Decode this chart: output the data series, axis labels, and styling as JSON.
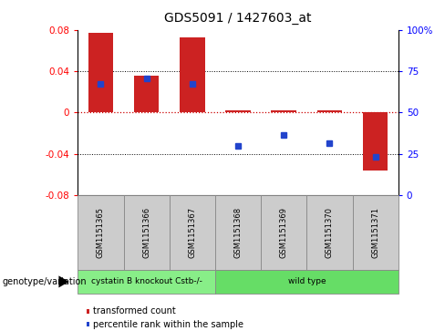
{
  "title": "GDS5091 / 1427603_at",
  "samples": [
    "GSM1151365",
    "GSM1151366",
    "GSM1151367",
    "GSM1151368",
    "GSM1151369",
    "GSM1151370",
    "GSM1151371"
  ],
  "bar_values": [
    0.077,
    0.036,
    0.073,
    0.002,
    0.002,
    0.002,
    -0.056
  ],
  "dot_values": [
    0.028,
    0.033,
    0.028,
    -0.032,
    -0.022,
    -0.03,
    -0.043
  ],
  "ylim": [
    -0.08,
    0.08
  ],
  "yticks_left": [
    -0.08,
    -0.04,
    0,
    0.04,
    0.08
  ],
  "yticks_right": [
    0,
    25,
    50,
    75,
    100
  ],
  "bar_color": "#cc2222",
  "dot_color": "#2244cc",
  "zero_line_color": "#cc0000",
  "groups": [
    {
      "label": "cystatin B knockout Cstb-/-",
      "n": 3,
      "color": "#88ee88"
    },
    {
      "label": "wild type",
      "n": 4,
      "color": "#66dd66"
    }
  ],
  "legend_bar_label": "transformed count",
  "legend_dot_label": "percentile rank within the sample",
  "genotype_label": "genotype/variation"
}
